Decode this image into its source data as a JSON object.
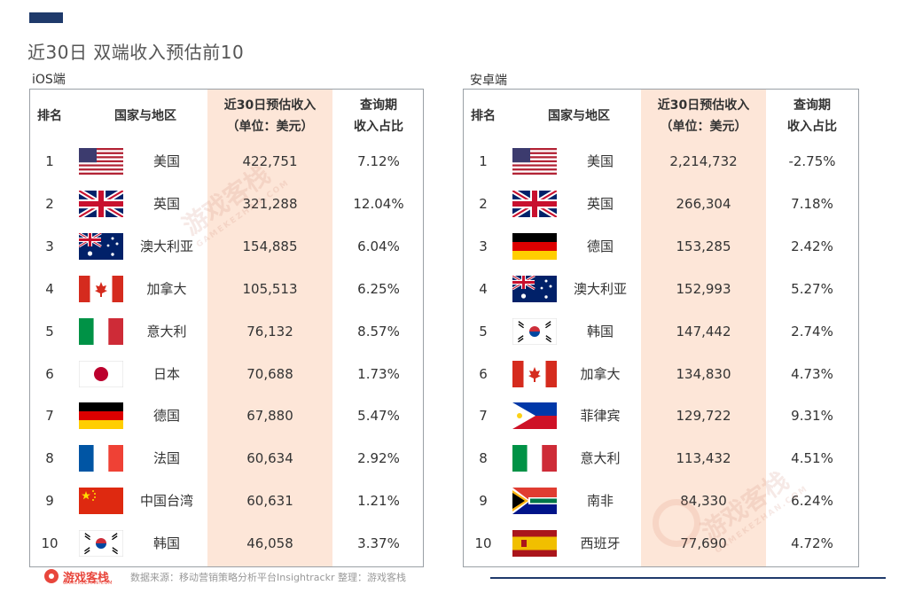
{
  "title": "近30日 双端收入预估前10",
  "footer": {
    "brand": "游戏客栈",
    "brand_sub": "GAMEKEZHAN.COM",
    "source": "数据来源：移动营销策略分析平台Insightrackr   整理：游戏客栈"
  },
  "watermark": {
    "text": "游戏客栈",
    "sub": "GAMEKEZHAN.COM"
  },
  "headers": {
    "rank": "排名",
    "country": "国家与地区",
    "revenue_line1": "近30日预估收入",
    "revenue_line2": "（单位：美元）",
    "share_line1": "查询期",
    "share_line2": "收入占比"
  },
  "colors": {
    "highlight": "#fde6d8",
    "accent": "#1f3a6b",
    "brand": "#e8463c"
  },
  "ios": {
    "label": "iOS端",
    "rows": [
      {
        "rank": "1",
        "flag": "us-flag",
        "country": "美国",
        "revenue": "422,751",
        "share": "7.12%"
      },
      {
        "rank": "2",
        "flag": "uk-flag",
        "country": "英国",
        "revenue": "321,288",
        "share": "12.04%"
      },
      {
        "rank": "3",
        "flag": "au-flag",
        "country": "澳大利亚",
        "revenue": "154,885",
        "share": "6.04%"
      },
      {
        "rank": "4",
        "flag": "ca-flag",
        "country": "加拿大",
        "revenue": "105,513",
        "share": "6.25%"
      },
      {
        "rank": "5",
        "flag": "it-flag",
        "country": "意大利",
        "revenue": "76,132",
        "share": "8.57%"
      },
      {
        "rank": "6",
        "flag": "jp-flag",
        "country": "日本",
        "revenue": "70,688",
        "share": "1.73%"
      },
      {
        "rank": "7",
        "flag": "de-flag",
        "country": "德国",
        "revenue": "67,880",
        "share": "5.47%"
      },
      {
        "rank": "8",
        "flag": "fr-flag",
        "country": "法国",
        "revenue": "60,634",
        "share": "2.92%"
      },
      {
        "rank": "9",
        "flag": "tw-flag",
        "country": "中国台湾",
        "revenue": "60,631",
        "share": "1.21%"
      },
      {
        "rank": "10",
        "flag": "kr-flag",
        "country": "韩国",
        "revenue": "46,058",
        "share": "3.37%"
      }
    ]
  },
  "android": {
    "label": "安卓端",
    "rows": [
      {
        "rank": "1",
        "flag": "us-flag",
        "country": "美国",
        "revenue": "2,214,732",
        "share": "-2.75%"
      },
      {
        "rank": "2",
        "flag": "uk-flag",
        "country": "英国",
        "revenue": "266,304",
        "share": "7.18%"
      },
      {
        "rank": "3",
        "flag": "de-flag",
        "country": "德国",
        "revenue": "153,285",
        "share": "2.42%"
      },
      {
        "rank": "4",
        "flag": "au-flag",
        "country": "澳大利亚",
        "revenue": "152,993",
        "share": "5.27%"
      },
      {
        "rank": "5",
        "flag": "kr-flag",
        "country": "韩国",
        "revenue": "147,442",
        "share": "2.74%"
      },
      {
        "rank": "6",
        "flag": "ca-flag",
        "country": "加拿大",
        "revenue": "134,830",
        "share": "4.73%"
      },
      {
        "rank": "7",
        "flag": "ph-flag",
        "country": "菲律宾",
        "revenue": "129,722",
        "share": "9.31%"
      },
      {
        "rank": "8",
        "flag": "it-flag",
        "country": "意大利",
        "revenue": "113,432",
        "share": "4.51%"
      },
      {
        "rank": "9",
        "flag": "za-flag",
        "country": "南非",
        "revenue": "84,330",
        "share": "6.24%"
      },
      {
        "rank": "10",
        "flag": "es-flag",
        "country": "西班牙",
        "revenue": "77,690",
        "share": "4.72%"
      }
    ]
  }
}
